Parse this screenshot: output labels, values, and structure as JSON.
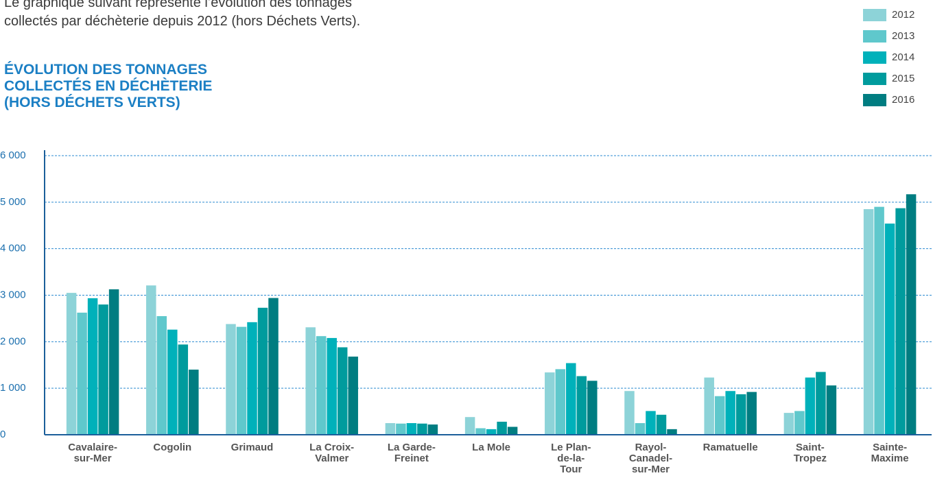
{
  "chart_data": {
    "type": "bar",
    "intro": "Le graphique suivant représente l’évolution des tonnages\ncollectés par déchèterie depuis 2012 (hors Déchets Verts).",
    "title": "ÉVOLUTION DES TONNAGES COLLECTÉS EN DÉCHÈTERIE",
    "subtitle": "(HORS DÉCHETS VERTS)",
    "categories": [
      "Cavalaire-\nsur-Mer",
      "Cogolin",
      "Grimaud",
      "La Croix-\nValmer",
      "La Garde-\nFreinet",
      "La Mole",
      "Le Plan-\nde-la-\nTour",
      "Rayol-\nCanadel-\nsur-Mer",
      "Ramatuelle",
      "Saint-\nTropez",
      "Sainte-\nMaxime"
    ],
    "series": [
      {
        "name": "2012",
        "color": "#8dd3d8",
        "values": [
          3050,
          3210,
          2380,
          2310,
          250,
          380,
          1340,
          940,
          1230,
          470,
          4850
        ]
      },
      {
        "name": "2013",
        "color": "#5fc8cc",
        "values": [
          2625,
          2550,
          2320,
          2120,
          240,
          140,
          1410,
          250,
          830,
          510,
          4900
        ]
      },
      {
        "name": "2014",
        "color": "#00b1ba",
        "values": [
          2935,
          2260,
          2420,
          2080,
          250,
          120,
          1540,
          510,
          940,
          1230,
          4540
        ]
      },
      {
        "name": "2015",
        "color": "#009b9d",
        "values": [
          2800,
          1940,
          2730,
          1880,
          240,
          280,
          1260,
          430,
          870,
          1350,
          4870
        ]
      },
      {
        "name": "2016",
        "color": "#007d81",
        "values": [
          3127,
          1400,
          2940,
          1680,
          220,
          170,
          1160,
          120,
          920,
          1060,
          5170
        ]
      }
    ],
    "ylim": [
      0,
      6000
    ],
    "yticks": [
      0,
      {
        "value": 1000,
        "label": "1 000"
      },
      {
        "value": 2000,
        "label": "2 000"
      },
      {
        "value": 3000,
        "label": "3 000"
      },
      {
        "value": 4000,
        "label": "4 000"
      },
      {
        "value": 5000,
        "label": "5 000"
      },
      {
        "value": 6000,
        "label": "6 000"
      }
    ],
    "grid": true,
    "legend": "top-right"
  }
}
